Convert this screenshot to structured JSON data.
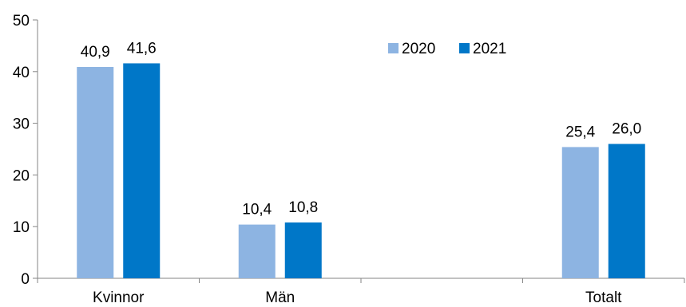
{
  "chart_data": {
    "type": "bar",
    "categories": [
      "Kvinnor",
      "Män",
      "",
      "Totalt"
    ],
    "series": [
      {
        "name": "2020",
        "color": "#8DB4E2",
        "values": [
          40.9,
          10.4,
          null,
          25.4
        ],
        "labels": [
          "40,9",
          "10,4",
          "",
          "25,4"
        ]
      },
      {
        "name": "2021",
        "color": "#0077C8",
        "values": [
          41.6,
          10.8,
          null,
          26.0
        ],
        "labels": [
          "41,6",
          "10,8",
          "",
          "26,0"
        ]
      }
    ],
    "y_ticks": [
      "0",
      "10",
      "20",
      "30",
      "40",
      "50"
    ],
    "ylim": [
      0,
      50
    ],
    "grid": false,
    "legend_position": "top-right",
    "title": "",
    "xlabel": "",
    "ylabel": ""
  }
}
